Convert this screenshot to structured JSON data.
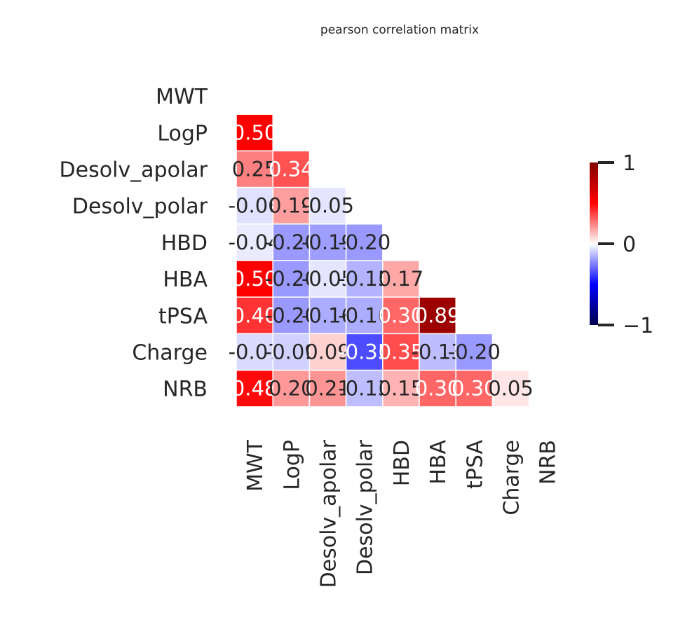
{
  "chart_data": {
    "type": "heatmap",
    "title": "pearson correlation matrix",
    "labels": [
      "MWT",
      "LogP",
      "Desolv_apolar",
      "Desolv_polar",
      "HBD",
      "HBA",
      "tPSA",
      "Charge",
      "NRB"
    ],
    "triangle": "lower",
    "colormap": "seismic",
    "vmin": -1,
    "vmax": 1,
    "colorbar_ticks": [
      "1",
      "0",
      "−1"
    ],
    "colorbar_tick_values": [
      1,
      0,
      -1
    ],
    "cells": [
      {
        "row": 1,
        "col": 0,
        "value": 0.5,
        "label": "0.50"
      },
      {
        "row": 2,
        "col": 0,
        "value": 0.25,
        "label": "0.25"
      },
      {
        "row": 2,
        "col": 1,
        "value": 0.34,
        "label": "0.34"
      },
      {
        "row": 3,
        "col": 0,
        "value": -0.06,
        "label": "-0.06"
      },
      {
        "row": 3,
        "col": 1,
        "value": 0.19,
        "label": "0.19"
      },
      {
        "row": 3,
        "col": 2,
        "value": -0.05,
        "label": "-0.05"
      },
      {
        "row": 4,
        "col": 0,
        "value": -0.04,
        "label": "-0.04"
      },
      {
        "row": 4,
        "col": 1,
        "value": -0.2,
        "label": "-0.20"
      },
      {
        "row": 4,
        "col": 2,
        "value": -0.19,
        "label": "-0.19"
      },
      {
        "row": 4,
        "col": 3,
        "value": -0.2,
        "label": "-0.20"
      },
      {
        "row": 5,
        "col": 0,
        "value": 0.5,
        "label": "0.50"
      },
      {
        "row": 5,
        "col": 1,
        "value": -0.2,
        "label": "-0.20"
      },
      {
        "row": 5,
        "col": 2,
        "value": -0.05,
        "label": "-0.05"
      },
      {
        "row": 5,
        "col": 3,
        "value": -0.15,
        "label": "-0.15"
      },
      {
        "row": 5,
        "col": 4,
        "value": 0.17,
        "label": "0.17"
      },
      {
        "row": 6,
        "col": 0,
        "value": 0.4,
        "label": "0.40"
      },
      {
        "row": 6,
        "col": 1,
        "value": -0.2,
        "label": "-0.20"
      },
      {
        "row": 6,
        "col": 2,
        "value": -0.16,
        "label": "-0.16"
      },
      {
        "row": 6,
        "col": 3,
        "value": -0.16,
        "label": "-0.16"
      },
      {
        "row": 6,
        "col": 4,
        "value": 0.3,
        "label": "0.30"
      },
      {
        "row": 6,
        "col": 5,
        "value": 0.89,
        "label": "0.89"
      },
      {
        "row": 7,
        "col": 0,
        "value": -0.07,
        "label": "-0.07"
      },
      {
        "row": 7,
        "col": 1,
        "value": -0.09,
        "label": "-0.09"
      },
      {
        "row": 7,
        "col": 2,
        "value": 0.09,
        "label": "0.09"
      },
      {
        "row": 7,
        "col": 3,
        "value": -0.35,
        "label": "-0.35"
      },
      {
        "row": 7,
        "col": 4,
        "value": 0.35,
        "label": "0.35"
      },
      {
        "row": 7,
        "col": 5,
        "value": -0.13,
        "label": "-0.13"
      },
      {
        "row": 7,
        "col": 6,
        "value": -0.2,
        "label": "-0.20"
      },
      {
        "row": 8,
        "col": 0,
        "value": 0.48,
        "label": "0.48"
      },
      {
        "row": 8,
        "col": 1,
        "value": 0.2,
        "label": "0.20"
      },
      {
        "row": 8,
        "col": 2,
        "value": 0.21,
        "label": "0.21"
      },
      {
        "row": 8,
        "col": 3,
        "value": -0.13,
        "label": "-0.13"
      },
      {
        "row": 8,
        "col": 4,
        "value": 0.15,
        "label": "0.15"
      },
      {
        "row": 8,
        "col": 5,
        "value": 0.3,
        "label": "0.30"
      },
      {
        "row": 8,
        "col": 6,
        "value": 0.3,
        "label": "0.30"
      },
      {
        "row": 8,
        "col": 7,
        "value": 0.05,
        "label": "0.05"
      }
    ]
  }
}
